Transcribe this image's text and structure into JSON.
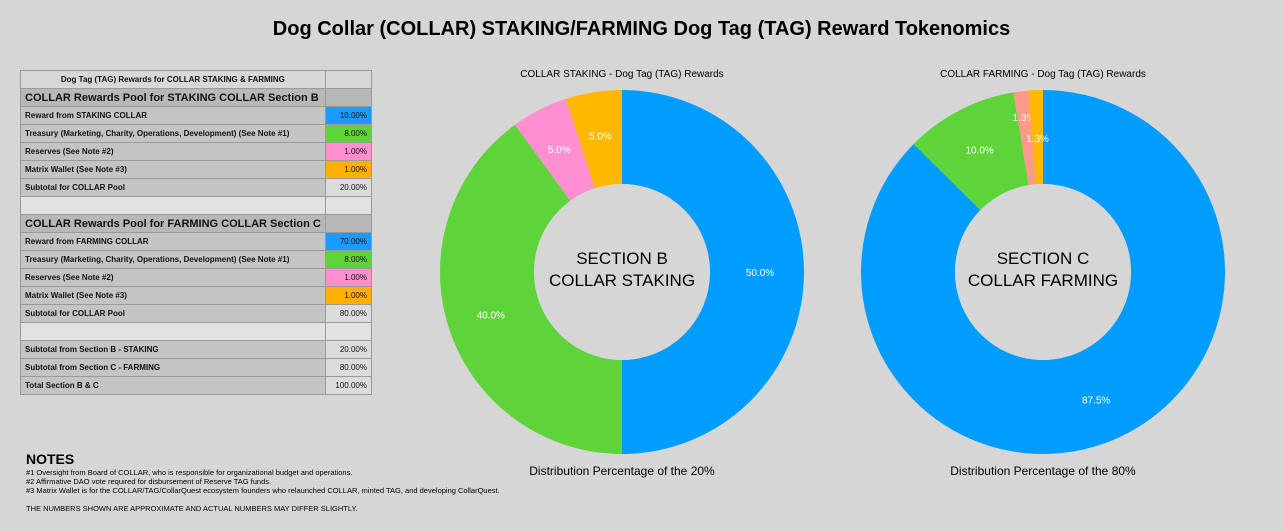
{
  "title": "Dog Collar (COLLAR) STAKING/FARMING Dog Tag (TAG) Reward Tokenomics",
  "table": {
    "title": "Dog Tag (TAG) Rewards for COLLAR STAKING & FARMING",
    "sections": [
      {
        "heading": "COLLAR Rewards Pool for STAKING COLLAR Section B",
        "rows": [
          {
            "label": "Reward from STAKING COLLAR",
            "value": "10.00%",
            "color": "#1a9bff"
          },
          {
            "label": "Treasury (Marketing, Charity, Operations, Development) (See Note #1)",
            "value": "8.00%",
            "color": "#5fd43a"
          },
          {
            "label": "Reserves (See Note #2)",
            "value": "1.00%",
            "color": "#ff8fd0"
          },
          {
            "label": "Matrix Wallet (See Note #3)",
            "value": "1.00%",
            "color": "#ffb000"
          },
          {
            "label": "Subtotal for COLLAR Pool",
            "value": "20.00%"
          }
        ]
      },
      {
        "heading": "COLLAR Rewards Pool for FARMING COLLAR Section C",
        "rows": [
          {
            "label": "Reward from FARMING COLLAR",
            "value": "70.00%",
            "color": "#1a9bff"
          },
          {
            "label": "Treasury (Marketing, Charity, Operations, Development) (See Note #1)",
            "value": "8.00%",
            "color": "#5fd43a"
          },
          {
            "label": "Reserves (See Note #2)",
            "value": "1.00%",
            "color": "#ff8fd0"
          },
          {
            "label": "Matrix Wallet (See Note #3)",
            "value": "1.00%",
            "color": "#ffb000"
          },
          {
            "label": "Subtotal for COLLAR Pool",
            "value": "80.00%"
          }
        ]
      },
      {
        "rows": [
          {
            "label": "Subtotal from Section B - STAKING",
            "value": "20.00%"
          },
          {
            "label": "Subtotal from Section C - FARMING",
            "value": "80.00%"
          },
          {
            "label": "Total Section B & C",
            "value": "100.00%"
          }
        ]
      }
    ]
  },
  "notes": {
    "heading": "NOTES",
    "lines": [
      "#1 Oversight from Board of COLLAR, who is responsible for organizational budget and operations.",
      "#2 Affirmative DAO vote required for disbursement of Reserve TAG funds.",
      "#3 Matrix Wallet is for the COLLAR/TAG/CollarQuest ecosystem founders who relaunched COLLAR, minted TAG, and developing CollarQuest."
    ],
    "disclaimer": "THE NUMBERS SHOWN ARE APPROXIMATE AND ACTUAL NUMBERS MAY DIFFER SLIGHTLY."
  },
  "chart_data": [
    {
      "type": "pie",
      "title": "COLLAR STAKING - Dog Tag (TAG) Rewards",
      "center_text": [
        "SECTION B",
        "COLLAR STAKING"
      ],
      "subtitle": "Distribution Percentage of the 20%",
      "values": [
        50,
        40,
        5,
        5
      ],
      "value_labels": [
        "50.0%",
        "40.0%",
        "5.0%",
        "5.0%"
      ],
      "colors": [
        "#009dff",
        "#5fd43a",
        "#ff8fd0",
        "#ffb800"
      ]
    },
    {
      "type": "pie",
      "title": "COLLAR FARMING - Dog Tag (TAG) Rewards",
      "center_text": [
        "SECTION C",
        "COLLAR FARMING"
      ],
      "subtitle": "Distribution Percentage of the 80%",
      "values": [
        87.5,
        10,
        1.3,
        1.3
      ],
      "value_labels": [
        "87.5%",
        "10.0%",
        "1.3%",
        "1.3%"
      ],
      "colors": [
        "#009dff",
        "#5fd43a",
        "#ff9a8a",
        "#ffb800"
      ]
    }
  ]
}
